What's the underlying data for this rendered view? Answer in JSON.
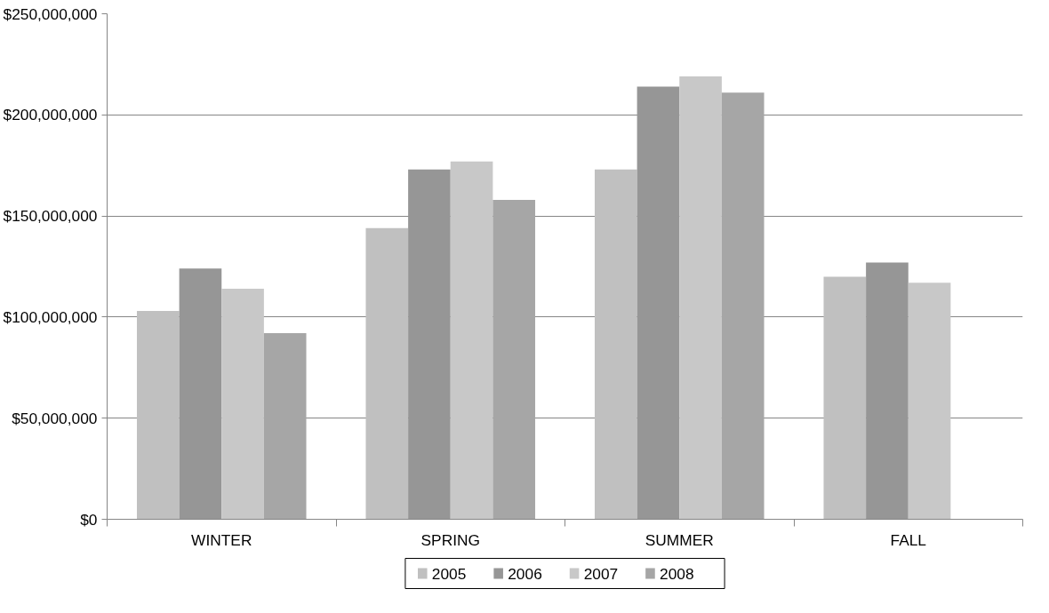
{
  "chart_data": {
    "type": "bar",
    "categories": [
      "WINTER",
      "SPRING",
      "SUMMER",
      "FALL"
    ],
    "series": [
      {
        "name": "2005",
        "color": "#c0c0c0",
        "values": [
          103000000,
          144000000,
          173000000,
          120000000
        ]
      },
      {
        "name": "2006",
        "color": "#969696",
        "values": [
          124000000,
          173000000,
          214000000,
          127000000
        ]
      },
      {
        "name": "2007",
        "color": "#c8c8c8",
        "values": [
          114000000,
          177000000,
          219000000,
          117000000
        ]
      },
      {
        "name": "2008",
        "color": "#a6a6a6",
        "values": [
          92000000,
          158000000,
          211000000,
          null
        ]
      }
    ],
    "ylim": [
      0,
      250000000
    ],
    "yticks": [
      {
        "value": 0,
        "label": "$0"
      },
      {
        "value": 50000000,
        "label": "$50,000,000"
      },
      {
        "value": 100000000,
        "label": "$100,000,000"
      },
      {
        "value": 150000000,
        "label": "$150,000,000"
      },
      {
        "value": 200000000,
        "label": "$200,000,000"
      },
      {
        "value": 250000000,
        "label": "$250,000,000"
      }
    ],
    "grid": "y",
    "legend": "bottom"
  }
}
